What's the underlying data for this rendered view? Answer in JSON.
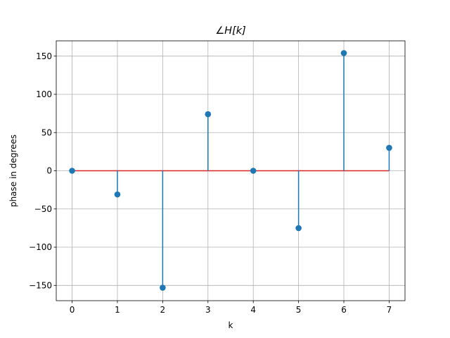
{
  "chart_data": {
    "type": "stem",
    "title": "∠H[k]",
    "xlabel": "k",
    "ylabel": "phase in degrees",
    "x": [
      0,
      1,
      2,
      3,
      4,
      5,
      6,
      7
    ],
    "values": [
      0,
      -31,
      -153,
      74,
      0,
      -75,
      154,
      30
    ],
    "baseline": 0,
    "xlim": [
      -0.35,
      7.35
    ],
    "ylim": [
      -170,
      170
    ],
    "xticks": [
      0,
      1,
      2,
      3,
      4,
      5,
      6,
      7
    ],
    "yticks": [
      -150,
      -100,
      -50,
      0,
      50,
      100,
      150
    ],
    "xtick_labels": [
      "0",
      "1",
      "2",
      "3",
      "4",
      "5",
      "6",
      "7"
    ],
    "ytick_labels": [
      "−150",
      "−100",
      "−50",
      "0",
      "50",
      "100",
      "150"
    ],
    "grid": true,
    "colors": {
      "stem": "#1f77b4",
      "marker": "#1f77b4",
      "baseline": "#d62728",
      "grid": "#b0b0b0",
      "axes": "#000000"
    }
  }
}
